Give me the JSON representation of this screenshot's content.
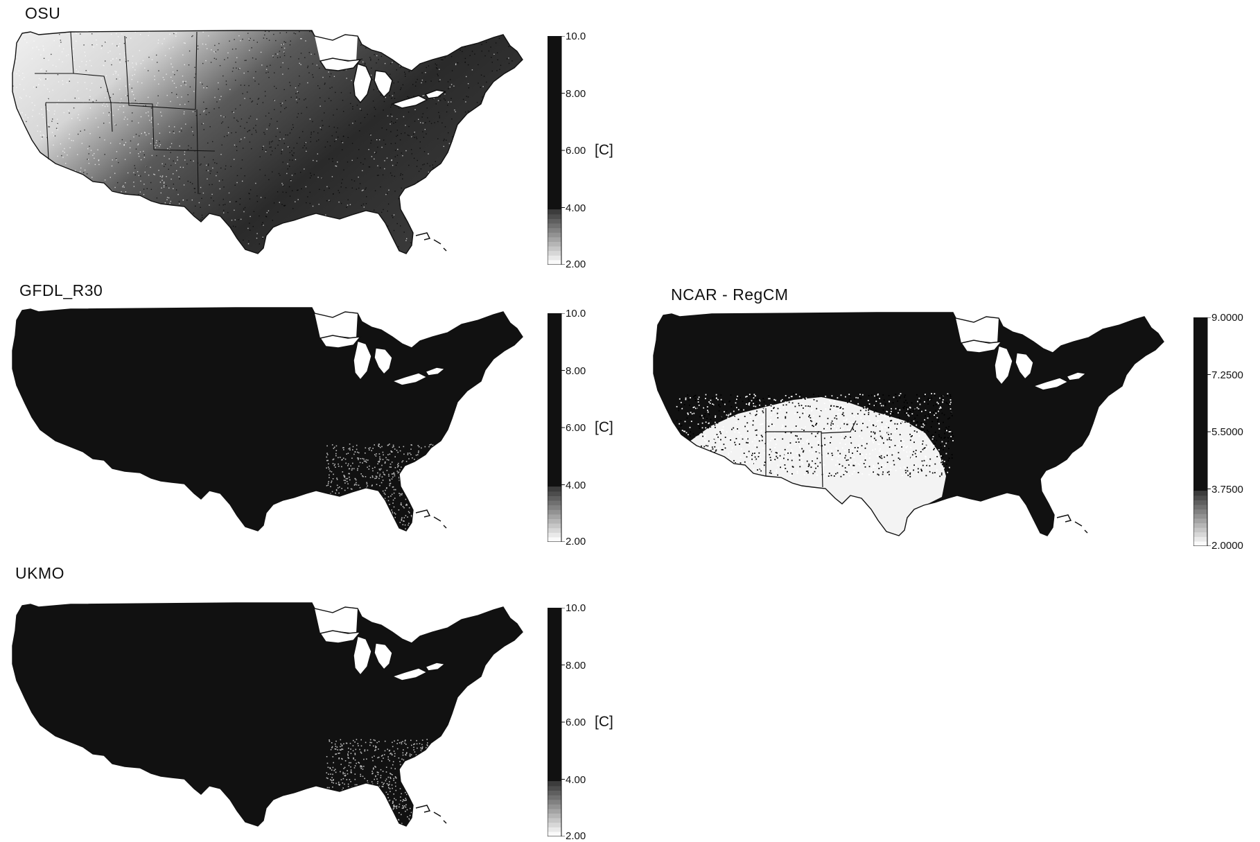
{
  "panels": [
    {
      "title": "OSU",
      "shading": "osu",
      "colorbar": {
        "ticks": [
          "10.0",
          "8.00",
          "6.00",
          "4.00",
          "2.00"
        ],
        "unit": "[C]"
      }
    },
    {
      "title": "GFDL_R30",
      "shading": "dark",
      "colorbar": {
        "ticks": [
          "10.0",
          "8.00",
          "6.00",
          "4.00",
          "2.00"
        ],
        "unit": "[C]"
      }
    },
    {
      "title": "NCAR - RegCM",
      "shading": "ncar",
      "colorbar": {
        "ticks": [
          "9.0000",
          "7.2500",
          "5.5000",
          "3.7500",
          "2.0000"
        ],
        "unit": ""
      }
    },
    {
      "title": "UKMO",
      "shading": "dark",
      "colorbar": {
        "ticks": [
          "10.0",
          "8.00",
          "6.00",
          "4.00",
          "2.00"
        ],
        "unit": "[C]"
      }
    }
  ],
  "colors": {
    "ink": "#111111",
    "paper": "#ffffff"
  }
}
